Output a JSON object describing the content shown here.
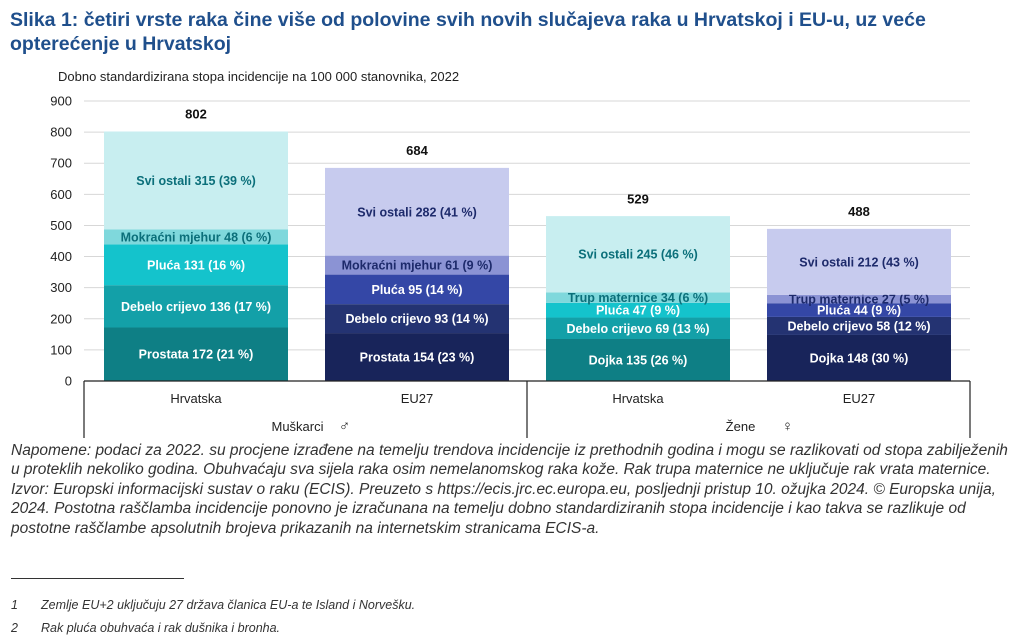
{
  "title": "Slika 1: četiri vrste raka čine više od polovine svih novih slučajeva raka u Hrvatskoj i EU-u, uz veće opterećenje u Hrvatskoj",
  "subtitle": "Dobno standardizirana stopa incidencije na 100 000 stanovnika, 2022",
  "chart_data": {
    "type": "bar",
    "stacked": true,
    "ylim": [
      0,
      900
    ],
    "yticks": [
      0,
      100,
      200,
      300,
      400,
      500,
      600,
      700,
      800,
      900
    ],
    "grid": true,
    "groups": [
      {
        "label": "Muškarci",
        "symbol": "♂"
      },
      {
        "label": "Žene",
        "symbol": "♀"
      }
    ],
    "bars": [
      {
        "category": "Hrvatska",
        "group": 0,
        "total": 802,
        "total_label": "802",
        "segments": [
          {
            "label": "Prostata 172 (21 %)",
            "value": 172,
            "color": "#0e7f85",
            "text_color": "#ffffff"
          },
          {
            "label": "Debelo crijevo 136 (17 %)",
            "value": 136,
            "color": "#13a0a8",
            "text_color": "#ffffff"
          },
          {
            "label": "Pluća 131 (16 %)",
            "value": 131,
            "color": "#14c3cc",
            "text_color": "#ffffff"
          },
          {
            "label": "Mokraćni mjehur 48 (6 %)",
            "value": 48,
            "color": "#7fd8dc",
            "text_color": "#0b6f7a"
          },
          {
            "label": "Svi ostali 315 (39 %)",
            "value": 315,
            "color": "#c8eef0",
            "text_color": "#0b6f7a"
          }
        ]
      },
      {
        "category": "EU27",
        "group": 0,
        "total": 684,
        "total_label": "684",
        "segments": [
          {
            "label": "Prostata 154 (23 %)",
            "value": 154,
            "color": "#18245a",
            "text_color": "#ffffff"
          },
          {
            "label": "Debelo crijevo 93 (14 %)",
            "value": 93,
            "color": "#243372",
            "text_color": "#ffffff"
          },
          {
            "label": "Pluća 95 (14 %)",
            "value": 95,
            "color": "#3447a6",
            "text_color": "#ffffff"
          },
          {
            "label": "Mokraćni mjehur 61 (9 %)",
            "value": 61,
            "color": "#8b93d4",
            "text_color": "#1d2a6b"
          },
          {
            "label": "Svi ostali 282 (41 %)",
            "value": 282,
            "color": "#c7cbee",
            "text_color": "#1d2a6b"
          }
        ]
      },
      {
        "category": "Hrvatska",
        "group": 1,
        "total": 529,
        "total_label": "529",
        "segments": [
          {
            "label": "Dojka 135 (26 %)",
            "value": 135,
            "color": "#0e7f85",
            "text_color": "#ffffff"
          },
          {
            "label": "Debelo crijevo 69 (13 %)",
            "value": 69,
            "color": "#13a0a8",
            "text_color": "#ffffff"
          },
          {
            "label": "Pluća 47 (9 %)",
            "value": 47,
            "color": "#14c3cc",
            "text_color": "#ffffff"
          },
          {
            "label": "Trup maternice 34 (6 %)",
            "value": 34,
            "color": "#7fd8dc",
            "text_color": "#0b6f7a"
          },
          {
            "label": "Svi ostali 245 (46 %)",
            "value": 245,
            "color": "#c8eef0",
            "text_color": "#0b6f7a"
          }
        ]
      },
      {
        "category": "EU27",
        "group": 1,
        "total": 488,
        "total_label": "488",
        "segments": [
          {
            "label": "Dojka 148 (30 %)",
            "value": 148,
            "color": "#18245a",
            "text_color": "#ffffff"
          },
          {
            "label": "Debelo crijevo 58 (12 %)",
            "value": 58,
            "color": "#243372",
            "text_color": "#ffffff"
          },
          {
            "label": "Pluća 44 (9 %)",
            "value": 44,
            "color": "#3447a6",
            "text_color": "#ffffff"
          },
          {
            "label": "Trup maternice 27 (5 %)",
            "value": 27,
            "color": "#8b93d4",
            "text_color": "#1d2a6b"
          },
          {
            "label": "Svi ostali 212 (43 %)",
            "value": 212,
            "color": "#c7cbee",
            "text_color": "#1d2a6b"
          }
        ]
      }
    ]
  },
  "notes": [
    "Napomene: podaci za 2022. su procjene izrađene na temelju trendova incidencije iz prethodnih godina i mogu se razlikovati od stopa zabilježenih u proteklih nekoliko godina. Obuhvaćaju sva sijela raka osim nemelanomskog raka kože. Rak trupa maternice ne uključuje rak vrata maternice.",
    "Izvor: Europski informacijski sustav o raku (ECIS). Preuzeto s https://ecis.jrc.ec.europa.eu, posljednji pristup 10. ožujka 2024. © Europska unija, 2024. Postotna raščlamba incidencije ponovno je izračunana na temelju dobno standardiziranih stopa incidencije i kao takva se razlikuje od postotne raščlambe apsolutnih brojeva prikazanih na internetskim stranicama ECIS-a."
  ],
  "footnotes": [
    {
      "num": "1",
      "text": "Zemlje EU+2 uključuju 27 država članica EU-a te Island i Norvešku."
    },
    {
      "num": "2",
      "text": "Rak pluća obuhvaća i rak dušnika i bronha."
    }
  ]
}
